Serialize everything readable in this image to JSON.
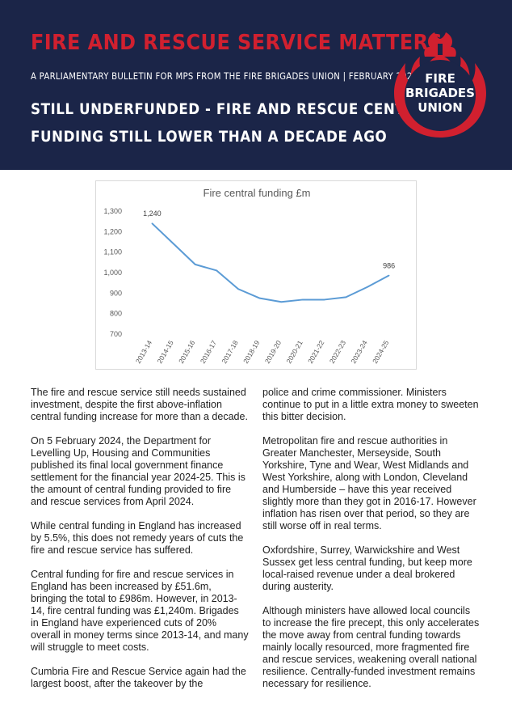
{
  "header": {
    "title": "FIRE AND RESCUE SERVICE MATTERS",
    "subtitle": "A PARLIAMENTARY BULLETIN FOR MPS FROM THE FIRE BRIGADES UNION | FEBRUARY 2024",
    "headline_line1": "STILL UNDERFUNDED - FIRE AND RESCUE CENTRAL",
    "headline_line2": "FUNDING STILL LOWER THAN A DECADE AGO",
    "logo": {
      "line1": "FIRE",
      "line2": "BRIGADES",
      "line3": "UNION",
      "colors": {
        "flame": "#d1202f",
        "background": "#1b2548"
      }
    }
  },
  "chart_data": {
    "type": "line",
    "title": "Fire central funding £m",
    "categories": [
      "2013-14",
      "2014-15",
      "2015-16",
      "2016-17",
      "2017-18",
      "2018-19",
      "2019-20",
      "2020-21",
      "2021-22",
      "2022-23",
      "2023-24",
      "2024-25"
    ],
    "series": [
      {
        "values": [
          1240,
          1140,
          1040,
          1010,
          920,
          875,
          857,
          868,
          868,
          880,
          930,
          986
        ]
      }
    ],
    "data_labels": [
      {
        "index": 0,
        "text": "1,240"
      },
      {
        "index": 11,
        "text": "986"
      }
    ],
    "y_ticks": [
      "700",
      "800",
      "900",
      "1,000",
      "1,100",
      "1,200",
      "1,300"
    ],
    "ylim": [
      700,
      1300
    ],
    "grid": false,
    "line_color": "#5b9bd5"
  },
  "body": {
    "left": [
      "The fire and rescue service still needs sustained investment, despite the first above-inflation central funding increase for more than a decade.",
      "On 5 February 2024, the Department for Levelling Up, Housing and Communities published its final local government finance settlement for the financial year 2024-25. This is the amount of central funding provided to fire and rescue services from April 2024.",
      "While central funding in England has increased by 5.5%, this does not remedy years of cuts the fire and rescue service has suffered.",
      "Central funding for fire and rescue services in England has been increased by £51.6m, bringing the total to £986m. However, in 2013-14, fire central funding was £1,240m. Brigades in England have experienced cuts of 20% overall in money terms since 2013-14, and many will struggle to meet costs.",
      "Cumbria Fire and Rescue Service again had the largest boost, after the takeover by the"
    ],
    "right": [
      "police and crime commissioner. Ministers continue to put in a little extra money to sweeten this bitter decision.",
      "Metropolitan fire and rescue authorities in Greater Manchester, Merseyside, South Yorkshire, Tyne and Wear, West Midlands and West Yorkshire, along with London, Cleveland and Humberside – have this year received slightly more than they got in 2016-17. However inflation has risen over that period, so they are still worse off in real terms.",
      "Oxfordshire, Surrey, Warwickshire and West Sussex get less central funding, but keep more local-raised revenue under a deal brokered during austerity.",
      "Although ministers have allowed local councils to increase the fire precept, this only accelerates the move away from central funding towards mainly locally resourced, more fragmented fire and rescue services, weakening overall national resilience. Centrally-funded investment remains necessary for resilience."
    ]
  }
}
